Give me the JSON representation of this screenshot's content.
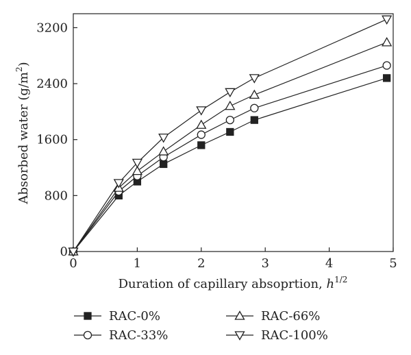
{
  "chart_data": {
    "type": "line",
    "title": "",
    "xlabel": "Duration of capillary absoprtion, ",
    "xlabel_unit": "h",
    "xlabel_exp": "1/2",
    "ylabel": "Absorbed water (g/m",
    "ylabel_exp": "2",
    "ylabel_close": ")",
    "xlim": [
      0,
      5
    ],
    "ylim": [
      0,
      3400
    ],
    "xticks": [
      0,
      1,
      2,
      3,
      4,
      5
    ],
    "yticks": [
      0,
      800,
      1600,
      2400,
      3200
    ],
    "grid": false,
    "legend_position": "bottom",
    "x": [
      0,
      0.71,
      1,
      1.41,
      2,
      2.45,
      2.83,
      4.9
    ],
    "series": [
      {
        "name": "RAC-0%",
        "marker": "filled-square",
        "values": [
          0,
          800,
          1000,
          1250,
          1520,
          1710,
          1880,
          2480
        ]
      },
      {
        "name": "RAC-33%",
        "marker": "open-circle",
        "values": [
          0,
          860,
          1080,
          1350,
          1670,
          1880,
          2050,
          2660
        ]
      },
      {
        "name": "RAC-66%",
        "marker": "open-triangle-up",
        "values": [
          0,
          910,
          1150,
          1430,
          1810,
          2080,
          2240,
          2990
        ]
      },
      {
        "name": "RAC-100%",
        "marker": "open-triangle-down",
        "values": [
          0,
          980,
          1270,
          1630,
          2020,
          2280,
          2480,
          3320
        ]
      }
    ]
  }
}
